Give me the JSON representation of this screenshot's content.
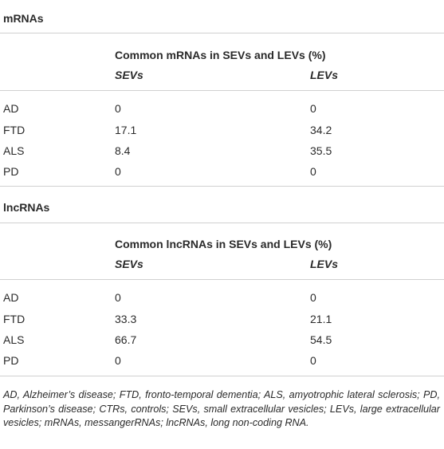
{
  "sections": [
    {
      "title": "mRNAs",
      "header": "Common mRNAs in SEVs and LEVs (%)",
      "col1": "SEVs",
      "col2": "LEVs",
      "rows": [
        {
          "label": "AD",
          "sevs": "0",
          "levs": "0"
        },
        {
          "label": "FTD",
          "sevs": "17.1",
          "levs": "34.2"
        },
        {
          "label": "ALS",
          "sevs": "8.4",
          "levs": "35.5"
        },
        {
          "label": "PD",
          "sevs": "0",
          "levs": "0"
        }
      ]
    },
    {
      "title": "lncRNAs",
      "header": "Common lncRNAs in SEVs and LEVs (%)",
      "col1": "SEVs",
      "col2": "LEVs",
      "rows": [
        {
          "label": "AD",
          "sevs": "0",
          "levs": "0"
        },
        {
          "label": "FTD",
          "sevs": "33.3",
          "levs": "21.1"
        },
        {
          "label": "ALS",
          "sevs": "66.7",
          "levs": "54.5"
        },
        {
          "label": "PD",
          "sevs": "0",
          "levs": "0"
        }
      ]
    }
  ],
  "footnote": "AD, Alzheimer’s disease; FTD, fronto-temporal dementia; ALS, amyotrophic lateral sclerosis; PD, Parkinson’s disease; CTRs, controls; SEVs, small extracellular vesicles; LEVs, large extracellular vesicles; mRNAs, messangerRNAs; lncRNAs, long non-coding RNA."
}
